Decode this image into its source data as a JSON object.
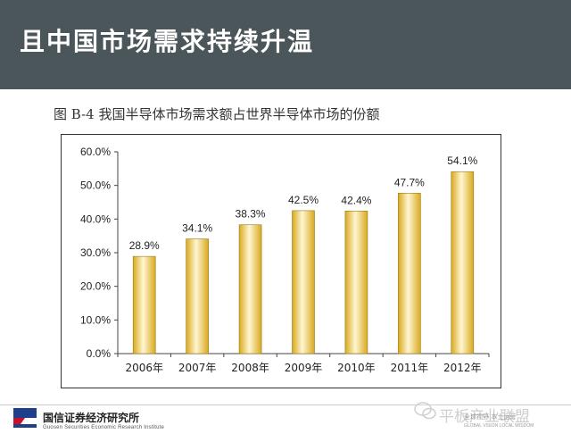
{
  "header": {
    "title": "且中国市场需求持续升温"
  },
  "figure": {
    "caption": "图 B-4   我国半导体市场需求额占世界半导体市场的份额"
  },
  "chart_data": {
    "type": "bar",
    "categories": [
      "2006年",
      "2007年",
      "2008年",
      "2009年",
      "2010年",
      "2011年",
      "2012年"
    ],
    "values": [
      28.9,
      34.1,
      38.3,
      42.5,
      42.4,
      47.7,
      54.1
    ],
    "value_labels": [
      "28.9%",
      "34.1%",
      "38.3%",
      "42.5%",
      "42.4%",
      "47.7%",
      "54.1%"
    ],
    "ylim": [
      0,
      60
    ],
    "yticks": [
      "0.0%",
      "10.0%",
      "20.0%",
      "30.0%",
      "40.0%",
      "50.0%",
      "60.0%"
    ],
    "xlabel": "",
    "ylabel": "",
    "grid": false,
    "legend": "none",
    "bar_color": "#f0c83c",
    "bar_highlight": "#fff6d2"
  },
  "footer": {
    "org_name": "国信证券经济研究所",
    "org_subtitle": "Guosen Securities Economic Research Institute",
    "watermark": "平板产业联盟",
    "watermark_sub": "全球视野 本土运营",
    "watermark_sub2": "GLOBAL VISION LOCAL WISDOM"
  }
}
